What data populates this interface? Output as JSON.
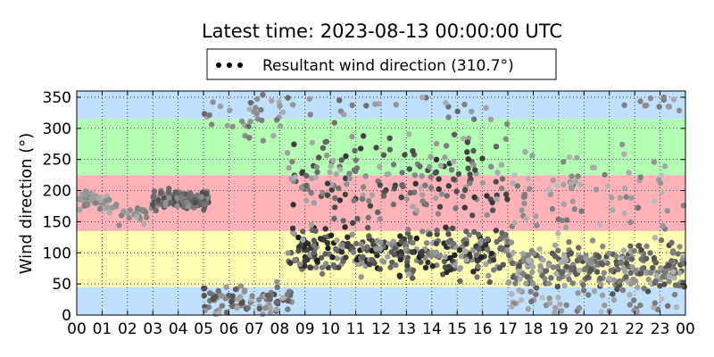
{
  "chart_data": {
    "type": "scatter",
    "title": "Latest time: 2023-08-13 00:00:00 UTC",
    "xlabel": "",
    "ylabel": "Wind direction (°)",
    "x_unit": "hour of day (UTC)",
    "xlim": [
      0,
      24
    ],
    "ylim": [
      0,
      360
    ],
    "x_ticks": [
      "00",
      "01",
      "02",
      "03",
      "04",
      "05",
      "06",
      "07",
      "08",
      "09",
      "10",
      "11",
      "12",
      "13",
      "14",
      "15",
      "16",
      "17",
      "18",
      "19",
      "20",
      "21",
      "22",
      "23",
      "00"
    ],
    "y_ticks": [
      "0",
      "50",
      "100",
      "150",
      "200",
      "250",
      "300",
      "350"
    ],
    "grid": true,
    "legend": {
      "placement": "top-center",
      "label": "Resultant wind direction (310.7°)",
      "marker_color": "#000000"
    },
    "bands": [
      {
        "from": 0,
        "to": 45,
        "color": "#bfe0ff"
      },
      {
        "from": 45,
        "to": 135,
        "color": "#ffffb3"
      },
      {
        "from": 135,
        "to": 225,
        "color": "#ffb3b8"
      },
      {
        "from": 225,
        "to": 315,
        "color": "#b3ffb3"
      },
      {
        "from": 315,
        "to": 360,
        "color": "#bfe0ff"
      }
    ],
    "clusters": [
      {
        "x_range": [
          0.0,
          1.2
        ],
        "y_mean": 185,
        "y_spread": 15,
        "count": 55,
        "shade": [
          0.45,
          0.7
        ]
      },
      {
        "x_range": [
          1.2,
          3.0
        ],
        "y_mean": 165,
        "y_spread": 20,
        "count": 30,
        "shade": [
          0.5,
          0.7
        ]
      },
      {
        "x_range": [
          3.0,
          5.2
        ],
        "y_mean": 185,
        "y_spread": 15,
        "count": 160,
        "shade": [
          0.3,
          0.6
        ]
      },
      {
        "x_range": [
          5.0,
          8.5
        ],
        "y_mean": 25,
        "y_spread": 25,
        "count": 90,
        "shade": [
          0.3,
          0.7
        ]
      },
      {
        "x_range": [
          5.0,
          8.2
        ],
        "y_mean": 320,
        "y_spread": 40,
        "count": 35,
        "shade": [
          0.4,
          0.7
        ]
      },
      {
        "x_range": [
          8.3,
          17.0
        ],
        "y_mean": 100,
        "y_spread": 40,
        "count": 360,
        "shade": [
          0.1,
          0.65
        ]
      },
      {
        "x_range": [
          8.3,
          17.0
        ],
        "y_mean": 220,
        "y_spread": 70,
        "count": 200,
        "shade": [
          0.2,
          0.7
        ]
      },
      {
        "x_range": [
          8.3,
          17.0
        ],
        "y_mean": 330,
        "y_spread": 25,
        "count": 25,
        "shade": [
          0.4,
          0.7
        ]
      },
      {
        "x_range": [
          17.0,
          24.0
        ],
        "y_mean": 75,
        "y_spread": 40,
        "count": 300,
        "shade": [
          0.3,
          0.7
        ]
      },
      {
        "x_range": [
          17.0,
          24.0
        ],
        "y_mean": 200,
        "y_spread": 70,
        "count": 80,
        "shade": [
          0.45,
          0.75
        ]
      },
      {
        "x_range": [
          17.0,
          24.0
        ],
        "y_mean": 20,
        "y_spread": 20,
        "count": 40,
        "shade": [
          0.45,
          0.75
        ]
      },
      {
        "x_range": [
          21.5,
          24.0
        ],
        "y_mean": 340,
        "y_spread": 15,
        "count": 12,
        "shade": [
          0.45,
          0.7
        ]
      }
    ]
  }
}
